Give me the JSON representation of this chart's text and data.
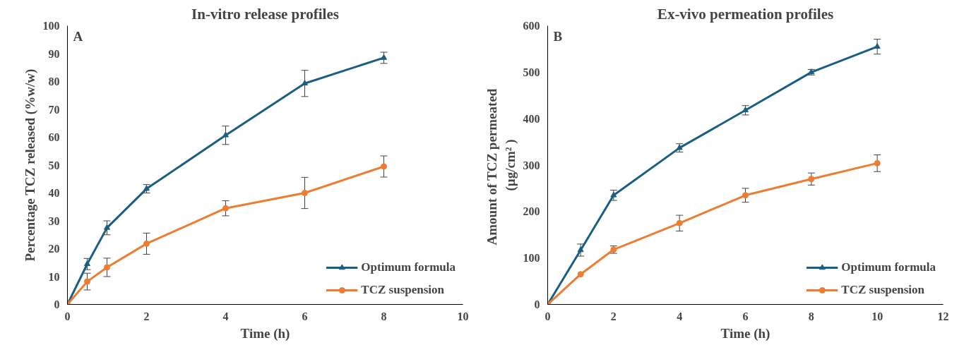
{
  "chart_data": [
    {
      "type": "line",
      "title": "In-vitro release profiles",
      "xlabel": "Time (h)",
      "ylabel": "Percentage TCZ released (%w/w)",
      "annotations": [
        "A"
      ],
      "x": [
        0,
        0.5,
        1,
        2,
        4,
        6,
        8
      ],
      "xlim": [
        0,
        10
      ],
      "xticks": [
        0,
        2,
        4,
        6,
        8,
        10
      ],
      "ylim": [
        0,
        100
      ],
      "yticks": [
        0,
        10,
        20,
        30,
        40,
        50,
        60,
        70,
        80,
        90,
        100
      ],
      "series": [
        {
          "name": "Optimum formula",
          "color": "#1b5e84",
          "marker": "triangle",
          "values": [
            0,
            14.5,
            27.5,
            41.5,
            60.7,
            79.3,
            88.5
          ],
          "errors": [
            null,
            2,
            2.5,
            1.5,
            3.3,
            4.7,
            2
          ]
        },
        {
          "name": "TCZ suspension",
          "color": "#ed7d31",
          "marker": "circle",
          "values": [
            0,
            8.2,
            13.3,
            21.8,
            34.5,
            40,
            49.5
          ],
          "errors": [
            null,
            3,
            3.3,
            3.8,
            2.7,
            5.6,
            3.8
          ]
        }
      ],
      "legend": "bottom right",
      "grid": false
    },
    {
      "type": "line",
      "title": "Ex-vivo permeation profiles",
      "xlabel": "Time (h)",
      "ylabel": "Amount of  TCZ permeated\n(µg/cm² )",
      "annotations": [
        "B"
      ],
      "x": [
        0,
        1,
        2,
        4,
        6,
        8,
        10
      ],
      "xlim": [
        0,
        12
      ],
      "xticks": [
        0,
        2,
        4,
        6,
        8,
        10,
        12
      ],
      "ylim": [
        0,
        600
      ],
      "yticks": [
        0,
        100,
        200,
        300,
        400,
        500,
        600
      ],
      "series": [
        {
          "name": "Optimum formula",
          "color": "#1b5e84",
          "marker": "triangle",
          "values": [
            0,
            117,
            235,
            337,
            418,
            500,
            555
          ],
          "errors": [
            null,
            13,
            11,
            9,
            10,
            6,
            16
          ]
        },
        {
          "name": "TCZ suspension",
          "color": "#ed7d31",
          "marker": "circle",
          "values": [
            0,
            65,
            118,
            175,
            235,
            270,
            304
          ],
          "errors": [
            null,
            null,
            8,
            17,
            15,
            13,
            18
          ]
        }
      ],
      "legend": "bottom right",
      "grid": false
    }
  ]
}
